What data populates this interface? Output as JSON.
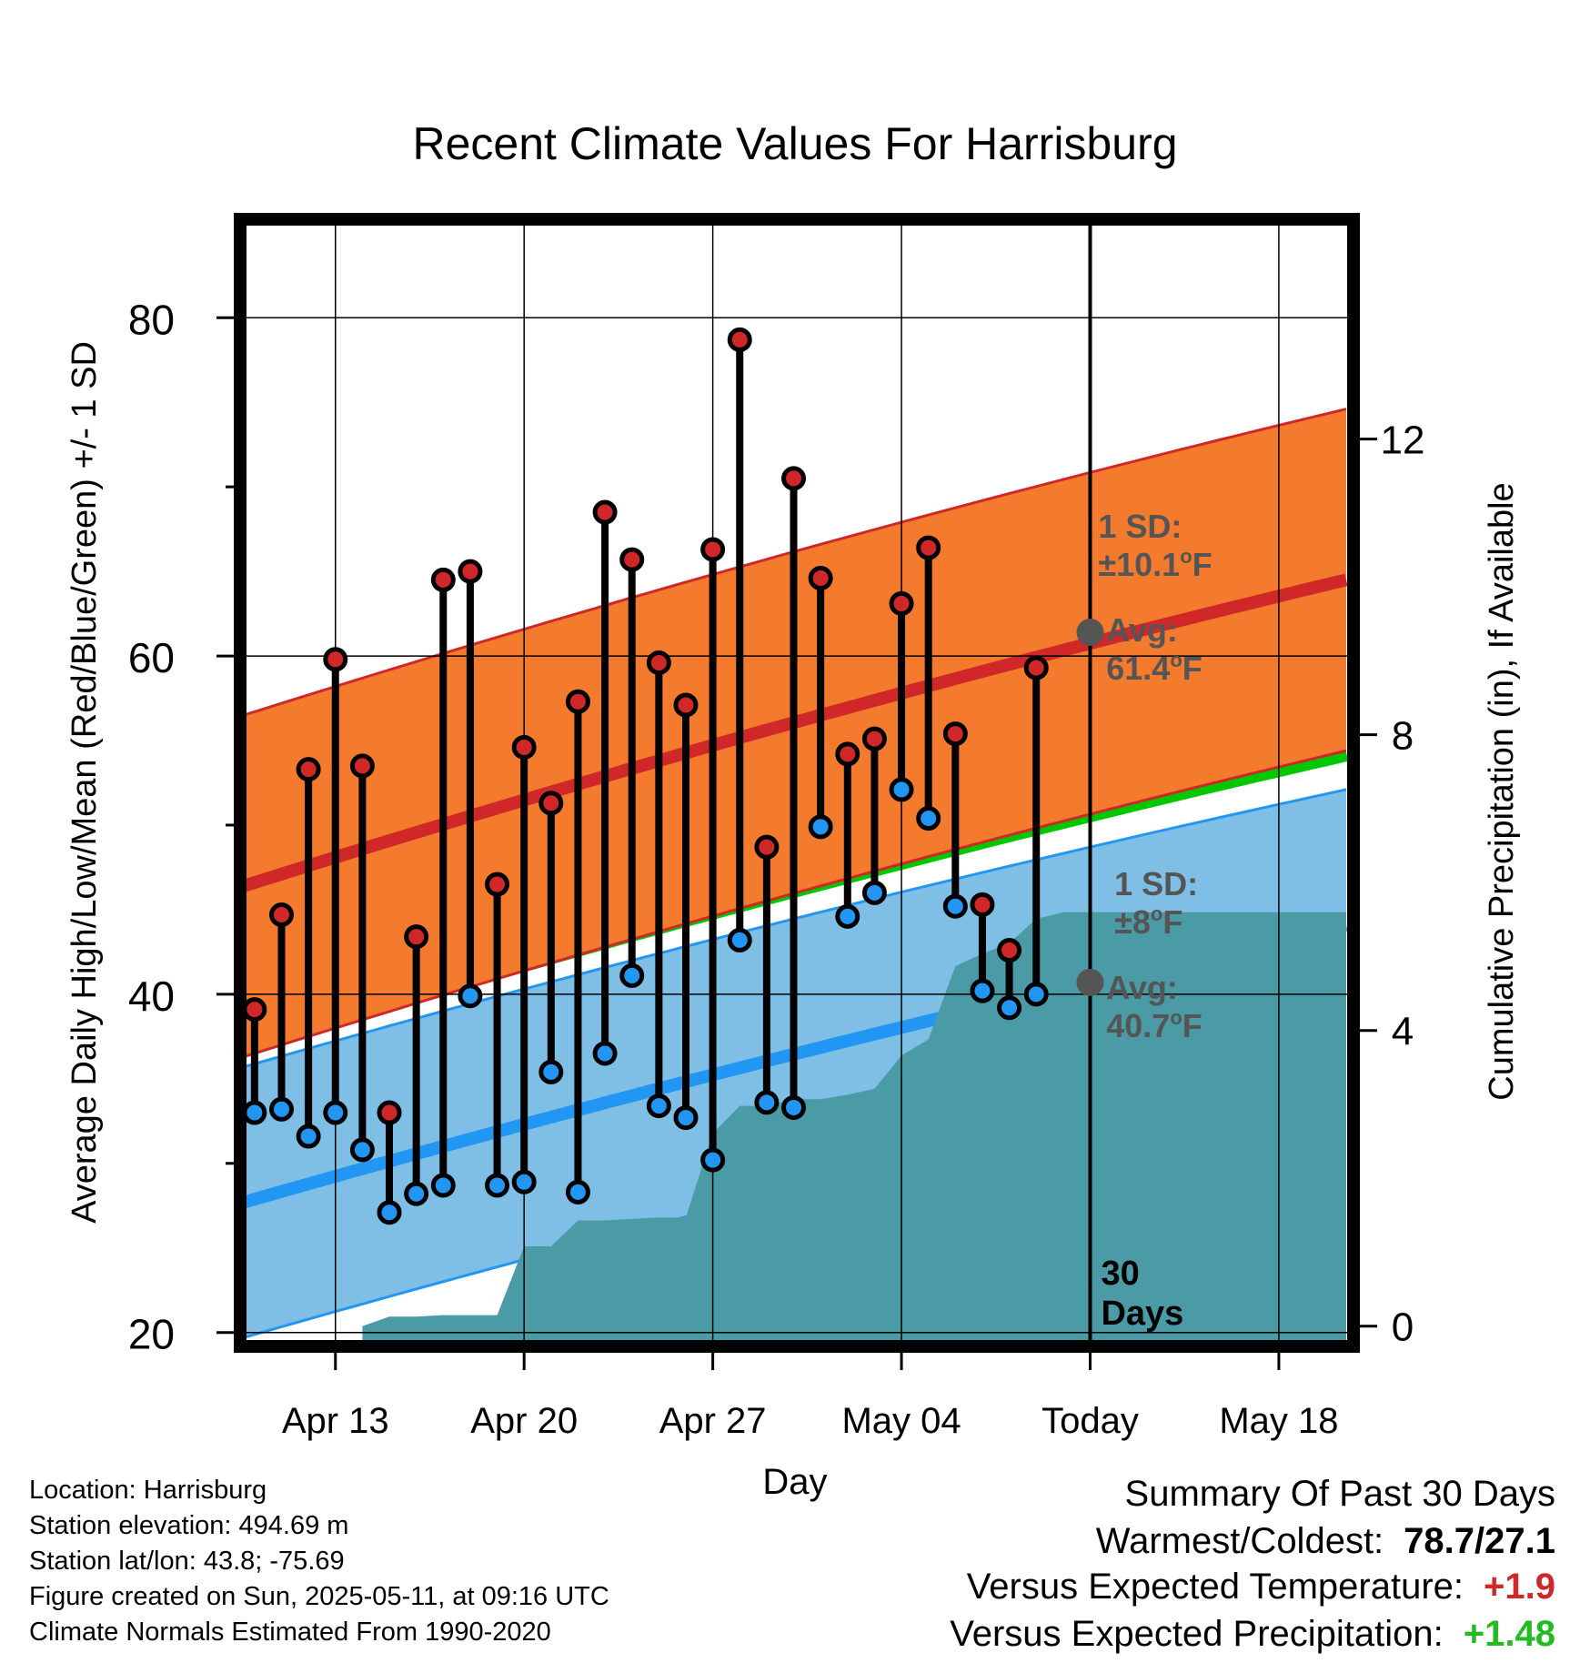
{
  "chart_data": {
    "type": "line",
    "title": "Recent Climate Values For Harrisburg",
    "xlabel": "Day",
    "ylabel_left": "Average Daily High/Low/Mean (Red/Blue/Green) +/- 1 SD",
    "ylabel_right": "Cumulative Precipitation (in), If Available",
    "x_ticks": [
      {
        "day": 4,
        "label": "Apr 13"
      },
      {
        "day": 11,
        "label": "Apr 20"
      },
      {
        "day": 18,
        "label": "Apr 27"
      },
      {
        "day": 25,
        "label": "May 04"
      },
      {
        "day": 32,
        "label": "Today"
      },
      {
        "day": 39,
        "label": "May 18"
      }
    ],
    "x_range_days": [
      0.6,
      41.5
    ],
    "x_start_date": "Apr 09",
    "ylim_left": [
      19.5,
      85.5
    ],
    "y_ticks_left": [
      20,
      40,
      60,
      80
    ],
    "ylim_right": [
      -0.2,
      14.9
    ],
    "y_ticks_right": [
      0,
      4,
      8,
      12
    ],
    "grid": true,
    "today_day": 32,
    "today_label": "30\nDays",
    "daily": {
      "day": [
        1,
        2,
        3,
        4,
        5,
        6,
        7,
        8,
        9,
        10,
        11,
        12,
        13,
        14,
        15,
        16,
        17,
        18,
        19,
        20,
        21,
        22,
        23,
        24,
        25,
        26,
        27,
        28,
        29,
        30,
        31
      ],
      "high": [
        39.1,
        44.7,
        53.3,
        59.8,
        53.5,
        33.0,
        43.4,
        64.5,
        65.0,
        46.5,
        54.6,
        51.3,
        57.3,
        68.5,
        65.7,
        59.6,
        57.1,
        66.3,
        78.7,
        48.7,
        70.5,
        64.6,
        54.2,
        55.1,
        63.1,
        66.4,
        55.4,
        45.3,
        42.6,
        59.3,
        null
      ],
      "low": [
        33.0,
        33.2,
        31.6,
        33.0,
        30.8,
        27.1,
        28.2,
        28.7,
        39.9,
        28.7,
        28.9,
        35.4,
        28.3,
        36.5,
        41.1,
        33.4,
        32.7,
        30.2,
        43.2,
        33.6,
        33.3,
        49.9,
        44.6,
        46.0,
        52.1,
        50.4,
        45.2,
        40.2,
        39.2,
        40.0,
        null
      ]
    },
    "normals": {
      "high_avg": {
        "start": 46.4,
        "end": 64.5,
        "label_value": 61.4
      },
      "high_sd": 10.1,
      "low_avg": {
        "start": 27.7,
        "end": 44.1,
        "label_value": 40.7
      },
      "low_sd": 8.0,
      "mean_avg": {
        "start": 37.0,
        "end": 54.3
      }
    },
    "annotations": {
      "high_sd_text": [
        "1 SD:",
        "±10.1°F"
      ],
      "high_avg_text": [
        "Avg:",
        "61.4°F"
      ],
      "low_sd_text": [
        "1 SD:",
        "±8°F"
      ],
      "low_avg_text": [
        "Avg:",
        "40.7°F"
      ]
    },
    "precip_cumulative": {
      "day": [
        5,
        6,
        7,
        8,
        9,
        10,
        11,
        12,
        13,
        14,
        15,
        16,
        17,
        18,
        19,
        20,
        21,
        22,
        23,
        24,
        25,
        26,
        27,
        28,
        29,
        30,
        31,
        32,
        41.5
      ],
      "inches": [
        0.0,
        0.13,
        0.13,
        0.15,
        0.15,
        0.15,
        1.08,
        1.08,
        1.43,
        1.43,
        1.45,
        1.47,
        1.47,
        2.61,
        2.98,
        2.98,
        3.07,
        3.07,
        3.13,
        3.21,
        3.66,
        3.88,
        4.87,
        5.04,
        5.18,
        5.51,
        5.6,
        5.6,
        5.6
      ]
    },
    "colors": {
      "high_band": "#f47a2e",
      "high_line": "#d02828",
      "low_band": "#7fbfe6",
      "low_line": "#2196f3",
      "mean_band": "#00c800",
      "precip": "#4a9ba5",
      "annotation_text": "#555555",
      "high_dot": "#d02828",
      "low_dot": "#2196f3"
    }
  },
  "footer": {
    "location": "Location: Harrisburg",
    "elevation": "Station elevation: 494.69 m",
    "latlon": "Station lat/lon: 43.8; -75.69",
    "created": "Figure created on Sun, 2025-05-11, at 09:16 UTC",
    "normals": "Climate Normals Estimated From 1990-2020"
  },
  "summary": {
    "title": "Summary Of Past 30 Days",
    "warmest_label": "Warmest/Coldest:",
    "warmest_value": "78.7/27.1",
    "temp_label": "Versus Expected Temperature:",
    "temp_value": "+1.9",
    "temp_color": "#d02828",
    "precip_label": "Versus Expected Precipitation:",
    "precip_value": "+1.48",
    "precip_color": "#22bb22"
  }
}
